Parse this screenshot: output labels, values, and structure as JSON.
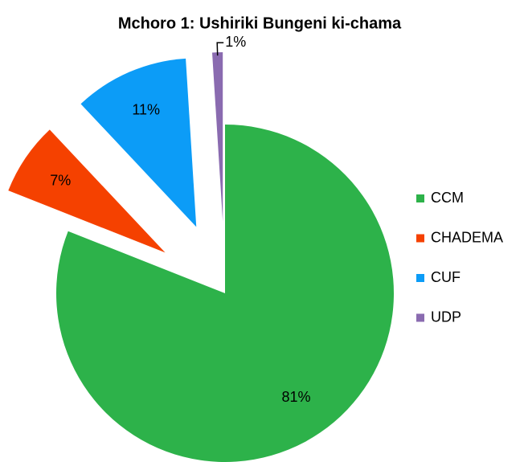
{
  "chart_data": {
    "type": "pie",
    "title": "Mchoro 1: Ushiriki Bungeni ki-chama",
    "categories": [
      "CCM",
      "CHADEMA",
      "CUF",
      "UDP"
    ],
    "values": [
      81,
      7,
      11,
      1
    ],
    "value_labels": [
      "81%",
      "7%",
      "11%",
      "1%"
    ],
    "colors": [
      "#2db24a",
      "#f54100",
      "#0c9cf7",
      "#8a6bb0"
    ],
    "exploded": [
      false,
      true,
      true,
      true
    ],
    "legend": "right"
  }
}
